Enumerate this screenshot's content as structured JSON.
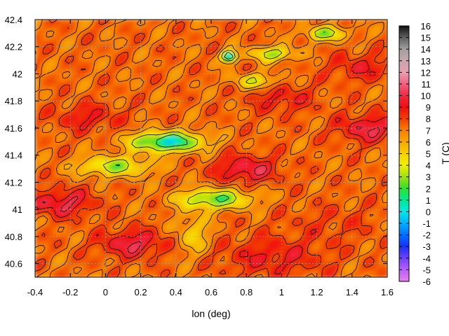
{
  "chart_data": {
    "type": "heatmap",
    "title": "",
    "xlabel": "lon (deg)",
    "ylabel": "",
    "xlim": [
      -0.4,
      1.6
    ],
    "ylim": [
      40.5,
      42.4
    ],
    "xticks": [
      "-0.4",
      "-0.2",
      "0",
      "0.2",
      "0.4",
      "0.6",
      "0.8",
      "1",
      "1.2",
      "1.4",
      "1.6"
    ],
    "yticks": [
      "40.6",
      "40.8",
      "41",
      "41.2",
      "41.4",
      "41.6",
      "41.8",
      "42",
      "42.2",
      "42.4"
    ],
    "grid": true,
    "contour_overlay": true,
    "colorbar": {
      "label": "T (C)",
      "range": [
        -6,
        16
      ],
      "ticks": [
        "-6",
        "-5",
        "-4",
        "-3",
        "-2",
        "-1",
        "0",
        "1",
        "2",
        "3",
        "4",
        "5",
        "6",
        "7",
        "8",
        "9",
        "10",
        "11",
        "12",
        "13",
        "14",
        "15",
        "16"
      ],
      "palette": [
        "#e880f0",
        "#b860f8",
        "#7040ff",
        "#1830ff",
        "#0070ff",
        "#00b0ff",
        "#00e8e0",
        "#00e890",
        "#30e030",
        "#a0e010",
        "#f0f000",
        "#f8d000",
        "#f8a800",
        "#f88000",
        "#f04000",
        "#f01010",
        "#f02840",
        "#f06080",
        "#e8a0b0",
        "#c8a8b0",
        "#a0a0a0",
        "#606060",
        "#101010"
      ]
    },
    "features": [
      {
        "kind": "cold-valley",
        "lon": 0.35,
        "lat": 41.5,
        "value": 0
      },
      {
        "kind": "cold-valley",
        "lon": 0.05,
        "lat": 41.32,
        "value": 3
      },
      {
        "kind": "cold-valley",
        "lon": 0.62,
        "lat": 41.08,
        "value": 2
      },
      {
        "kind": "cold-spot",
        "lon": 0.7,
        "lat": 42.13,
        "value": -1
      },
      {
        "kind": "cold-ridge",
        "lon": 0.95,
        "lat": 42.15,
        "value": 3
      },
      {
        "kind": "cold-ridge",
        "lon": 1.25,
        "lat": 42.3,
        "value": 3
      },
      {
        "kind": "cold-ridge",
        "lon": 0.85,
        "lat": 41.95,
        "value": 4
      },
      {
        "kind": "cold-plain",
        "lon": 0.5,
        "lat": 40.82,
        "value": 5
      },
      {
        "kind": "warm-coast",
        "lon": 1.3,
        "lat": 40.9,
        "value": 8
      },
      {
        "kind": "warm-coast",
        "lon": 0.95,
        "lat": 40.65,
        "value": 9
      },
      {
        "kind": "warm-zone",
        "lon": -0.25,
        "lat": 41.05,
        "value": 10
      },
      {
        "kind": "warm-zone",
        "lon": 0.15,
        "lat": 40.75,
        "value": 10
      },
      {
        "kind": "warm-zone",
        "lon": 0.8,
        "lat": 41.3,
        "value": 10
      },
      {
        "kind": "warm-zone",
        "lon": 1.5,
        "lat": 41.6,
        "value": 10
      },
      {
        "kind": "warm-zone",
        "lon": 1.0,
        "lat": 41.82,
        "value": 9
      },
      {
        "kind": "warm-zone",
        "lon": -0.1,
        "lat": 41.68,
        "value": 9
      },
      {
        "kind": "warm-zone",
        "lon": 1.45,
        "lat": 42.05,
        "value": 9
      }
    ]
  }
}
